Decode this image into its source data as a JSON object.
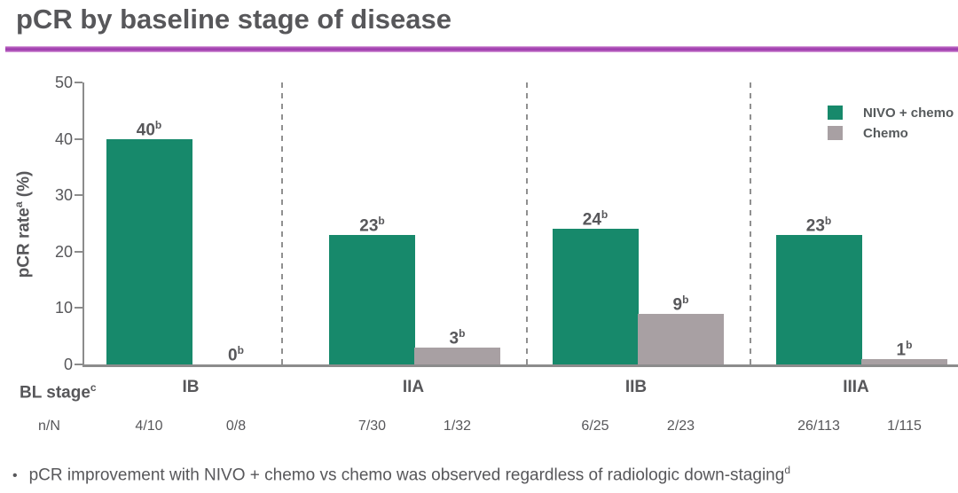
{
  "title": "pCR by baseline stage of disease",
  "y_axis": {
    "label": "pCR rate",
    "label_sup": "a",
    "label_unit": " (%)"
  },
  "x_axis": {
    "stage_row_label": "BL stage",
    "stage_row_sup": "c",
    "nn_row_label": "n/N"
  },
  "legend": {
    "items": [
      {
        "label": "NIVO + chemo",
        "color": "#17896b"
      },
      {
        "label": "Chemo",
        "color": "#a8a0a3"
      }
    ]
  },
  "footnote": {
    "bullet": "•",
    "text": "pCR improvement with NIVO + chemo vs chemo was observed regardless of radiologic down-staging",
    "sup": "d"
  },
  "colors": {
    "nivo_green": "#17896b",
    "chemo_gray": "#a8a0a3",
    "title_underline": "#9c3aad",
    "text": "#57575a",
    "axis": "#8c8c8c"
  },
  "chart_data": {
    "type": "bar",
    "title": "pCR by baseline stage of disease",
    "categories": [
      "IB",
      "IIA",
      "IIB",
      "IIIA"
    ],
    "series": [
      {
        "name": "NIVO + chemo",
        "color": "#17896b",
        "values": [
          40,
          23,
          24,
          23
        ],
        "value_labels": [
          "40",
          "23",
          "24",
          "23"
        ],
        "value_label_sup": "b",
        "n_over_N": [
          "4/10",
          "7/30",
          "6/25",
          "26/113"
        ]
      },
      {
        "name": "Chemo",
        "color": "#a8a0a3",
        "values": [
          0,
          3,
          9,
          1
        ],
        "value_labels": [
          "0",
          "3",
          "9",
          "1"
        ],
        "value_label_sup": "b",
        "n_over_N": [
          "0/8",
          "1/32",
          "2/23",
          "1/115"
        ]
      }
    ],
    "xlabel": "BL stage",
    "ylabel": "pCR rate (%)",
    "ylim": [
      0,
      50
    ],
    "yticks": [
      0,
      10,
      20,
      30,
      40,
      50
    ],
    "grid": false,
    "legend_position": "top-right",
    "annotations": "dashed vertical divider lines between stage groups"
  }
}
